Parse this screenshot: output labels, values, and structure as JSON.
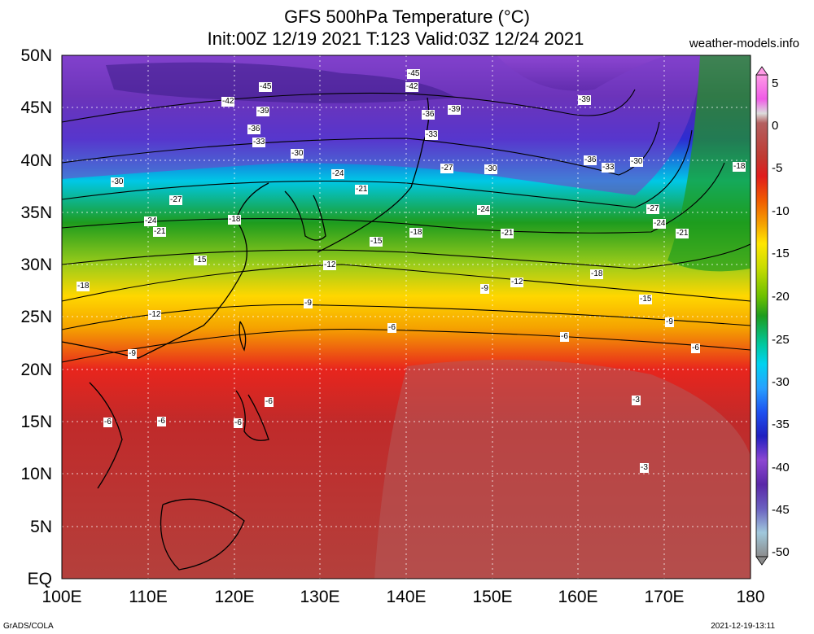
{
  "header": {
    "title_line1": "GFS 500hPa Temperature (°C)",
    "title_line2": "Init:00Z 12/19 2021 T:123 Valid:03Z 12/24 2021",
    "site": "weather-models.info"
  },
  "map": {
    "lat_labels": [
      "50N",
      "45N",
      "40N",
      "35N",
      "30N",
      "25N",
      "20N",
      "15N",
      "10N",
      "5N",
      "EQ"
    ],
    "lon_labels": [
      "100E",
      "110E",
      "120E",
      "130E",
      "140E",
      "150E",
      "160E",
      "170E",
      "180"
    ],
    "contour_labels": [
      "-45",
      "-42",
      "-39",
      "-36",
      "-33",
      "-30",
      "-27",
      "-24",
      "-21",
      "-18",
      "-15",
      "-12",
      "-9",
      "-6",
      "-3"
    ]
  },
  "colorbar": {
    "labels": [
      "5",
      "0",
      "-5",
      "-10",
      "-15",
      "-20",
      "-25",
      "-30",
      "-35",
      "-40",
      "-45",
      "-50"
    ],
    "colors": [
      "#9b9b9b",
      "#b45f5f",
      "#c03a32",
      "#e01c1c",
      "#f05a00",
      "#f5a300",
      "#ffe600",
      "#c8dc00",
      "#6cc000",
      "#1e9c1e",
      "#00c8a0",
      "#00d2f0",
      "#28a0ff",
      "#1e50f0",
      "#2020c0",
      "#8c46d2",
      "#c84bd2",
      "#f05ae6",
      "#ff9be6",
      "#dcdcdc"
    ]
  },
  "footer": {
    "left": "GrADS/COLA",
    "right": "2021-12-19-13:11"
  }
}
